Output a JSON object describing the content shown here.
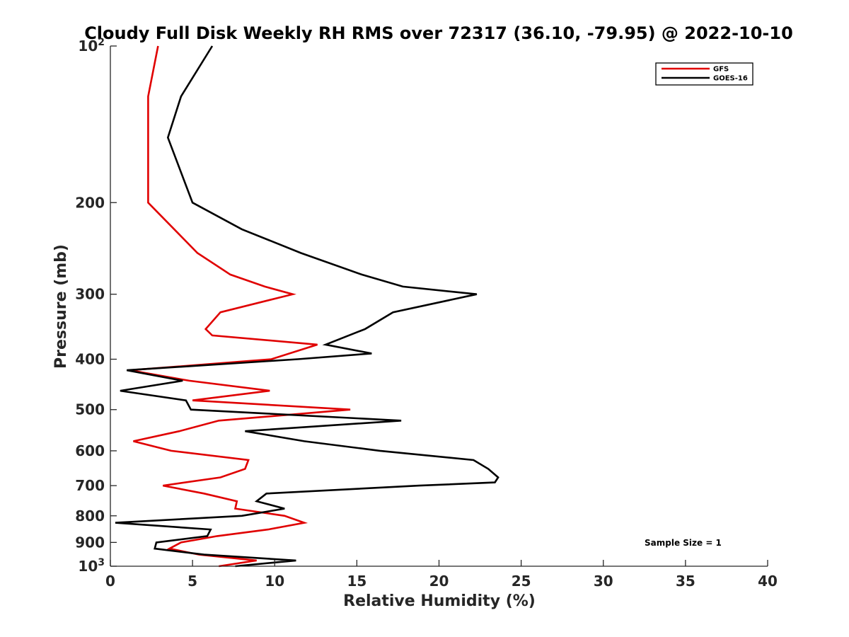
{
  "chart_data": {
    "type": "line",
    "title": "Cloudy Full Disk Weekly RH RMS over 72317 (36.10, -79.95) @ 2022-10-10",
    "xlabel": "Relative Humidity (%)",
    "ylabel": "Pressure (mb)",
    "xlim": [
      0,
      40
    ],
    "ylim": [
      100,
      1000
    ],
    "y_scale": "log",
    "y_reversed": true,
    "x_ticks": [
      "0",
      "5",
      "10",
      "15",
      "20",
      "25",
      "30",
      "35",
      "40"
    ],
    "y_ticks": [
      {
        "value": 100,
        "label": "10",
        "sup": "2"
      },
      {
        "value": 200,
        "label": "200",
        "sup": ""
      },
      {
        "value": 300,
        "label": "300",
        "sup": ""
      },
      {
        "value": 400,
        "label": "400",
        "sup": ""
      },
      {
        "value": 500,
        "label": "500",
        "sup": ""
      },
      {
        "value": 600,
        "label": "600",
        "sup": ""
      },
      {
        "value": 700,
        "label": "700",
        "sup": ""
      },
      {
        "value": 800,
        "label": "800",
        "sup": ""
      },
      {
        "value": 900,
        "label": "900",
        "sup": ""
      },
      {
        "value": 1000,
        "label": "10",
        "sup": "3"
      }
    ],
    "legend_position": "top-right",
    "annotation": "Sample Size = 1",
    "series": [
      {
        "name": "GFS",
        "color": "#e00000",
        "points": [
          [
            2.9,
            100
          ],
          [
            2.3,
            125
          ],
          [
            2.3,
            150
          ],
          [
            2.3,
            175
          ],
          [
            2.3,
            200
          ],
          [
            5.3,
            250
          ],
          [
            7.3,
            275
          ],
          [
            9.4,
            290
          ],
          [
            11.1,
            300
          ],
          [
            6.7,
            325
          ],
          [
            5.8,
            350
          ],
          [
            6.2,
            360
          ],
          [
            12.6,
            375
          ],
          [
            9.8,
            400
          ],
          [
            1.2,
            420
          ],
          [
            4.8,
            440
          ],
          [
            9.7,
            460
          ],
          [
            5.0,
            480
          ],
          [
            14.6,
            500
          ],
          [
            6.6,
            525
          ],
          [
            4.2,
            550
          ],
          [
            1.4,
            575
          ],
          [
            3.7,
            600
          ],
          [
            8.4,
            625
          ],
          [
            8.2,
            650
          ],
          [
            6.7,
            675
          ],
          [
            3.2,
            700
          ],
          [
            5.7,
            725
          ],
          [
            7.7,
            750
          ],
          [
            7.6,
            775
          ],
          [
            10.6,
            800
          ],
          [
            11.8,
            825
          ],
          [
            9.6,
            850
          ],
          [
            6.5,
            875
          ],
          [
            4.3,
            900
          ],
          [
            3.6,
            925
          ],
          [
            5.4,
            950
          ],
          [
            8.9,
            975
          ],
          [
            6.6,
            1000
          ]
        ]
      },
      {
        "name": "GOES-16",
        "color": "#000000",
        "points": [
          [
            6.2,
            100
          ],
          [
            4.3,
            125
          ],
          [
            3.5,
            150
          ],
          [
            4.3,
            175
          ],
          [
            5.0,
            200
          ],
          [
            8.0,
            225
          ],
          [
            11.6,
            250
          ],
          [
            15.3,
            275
          ],
          [
            17.8,
            290
          ],
          [
            22.3,
            300
          ],
          [
            17.2,
            325
          ],
          [
            15.5,
            350
          ],
          [
            13.1,
            375
          ],
          [
            15.9,
            390
          ],
          [
            11.4,
            400
          ],
          [
            1.0,
            420
          ],
          [
            4.4,
            440
          ],
          [
            0.6,
            460
          ],
          [
            4.6,
            480
          ],
          [
            4.9,
            500
          ],
          [
            17.7,
            525
          ],
          [
            8.2,
            550
          ],
          [
            11.8,
            575
          ],
          [
            16.4,
            600
          ],
          [
            22.1,
            625
          ],
          [
            23.0,
            650
          ],
          [
            23.6,
            675
          ],
          [
            23.4,
            690
          ],
          [
            18.8,
            700
          ],
          [
            9.5,
            725
          ],
          [
            8.9,
            750
          ],
          [
            10.6,
            775
          ],
          [
            8.0,
            800
          ],
          [
            0.3,
            825
          ],
          [
            6.1,
            850
          ],
          [
            5.9,
            875
          ],
          [
            2.8,
            900
          ],
          [
            2.7,
            925
          ],
          [
            5.7,
            950
          ],
          [
            11.3,
            975
          ],
          [
            7.6,
            1000
          ]
        ]
      }
    ]
  }
}
